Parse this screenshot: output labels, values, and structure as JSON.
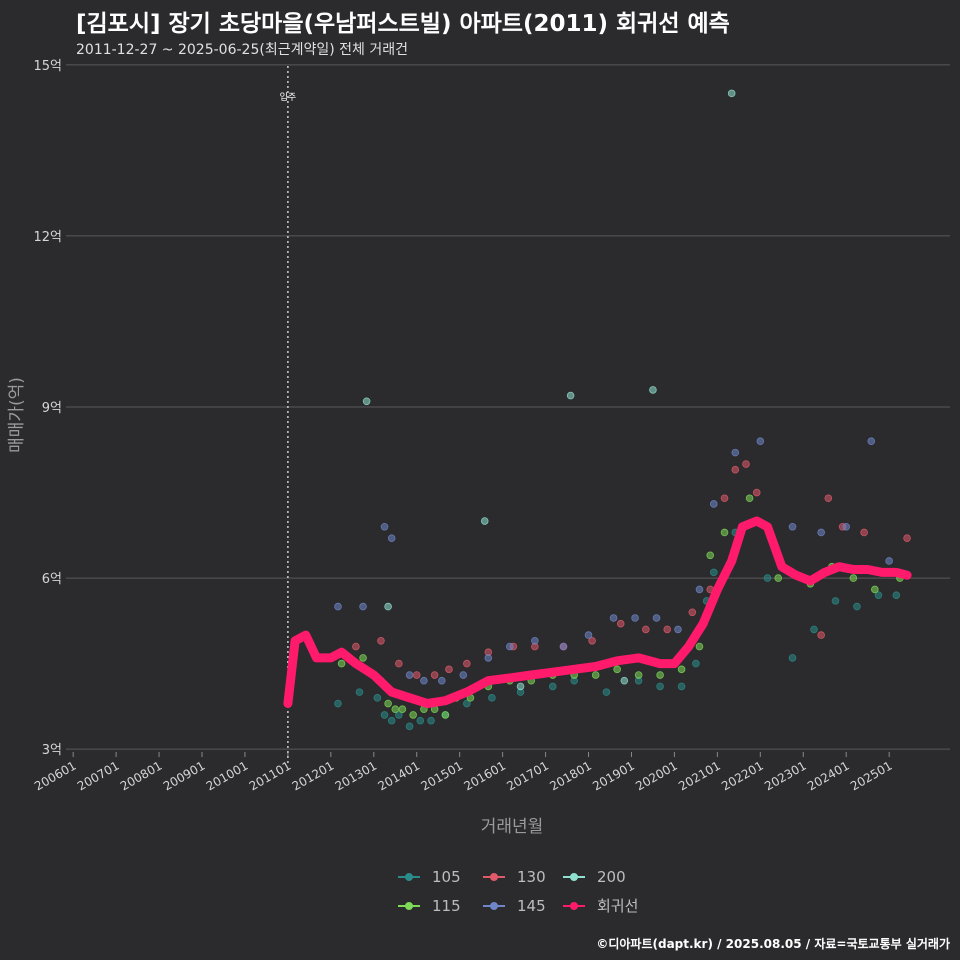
{
  "header": {
    "title": "[김포시] 장기 초당마을(우남퍼스트빌) 아파트(2011) 회귀선 예측",
    "subtitle": "2011-12-27 ~ 2025-06-25(최근계약일) 전체 거래건"
  },
  "footer": {
    "credit": "©디아파트(dapt.kr) / 2025.08.05 / 자료=국토교통부 실거래가"
  },
  "colors": {
    "background": "#2b2b2d",
    "grid": "#5a5a5c",
    "regression": "#ff1a6c",
    "s105": "#2a8c88",
    "s115": "#7ed957",
    "s130": "#e05a6a",
    "s145": "#6f86c8",
    "s200": "#8fe0cf"
  },
  "chart_data": {
    "type": "scatter",
    "title": "[김포시] 장기 초당마을(우남퍼스트빌) 아파트(2011) 회귀선 예측",
    "xlabel": "거래년월",
    "ylabel": "매매가(억)",
    "x_tick_labels": [
      "200601",
      "200701",
      "200801",
      "200901",
      "201001",
      "201101",
      "201201",
      "201301",
      "201401",
      "201501",
      "201601",
      "201701",
      "201801",
      "201901",
      "202001",
      "202101",
      "202201",
      "202301",
      "202401",
      "202501"
    ],
    "x_range": [
      "2005-11",
      "2026-06"
    ],
    "y_tick_values": [
      3,
      6,
      9,
      12,
      15
    ],
    "y_tick_labels": [
      "3억",
      "6억",
      "9억",
      "12억",
      "15억"
    ],
    "ylim": [
      2.95,
      15.05
    ],
    "grid": "horizontal",
    "legend_position": "bottom",
    "annotations": [
      {
        "x": "2011-01",
        "label": "입주",
        "style": "vertical dotted line"
      }
    ],
    "legend": [
      "105",
      "115",
      "130",
      "145",
      "200",
      "회귀선"
    ],
    "series": [
      {
        "name": "105",
        "points": [
          [
            "2012-03",
            3.8
          ],
          [
            "2012-09",
            4.0
          ],
          [
            "2013-02",
            3.9
          ],
          [
            "2013-04",
            3.6
          ],
          [
            "2013-06",
            3.5
          ],
          [
            "2013-08",
            3.6
          ],
          [
            "2013-11",
            3.4
          ],
          [
            "2014-02",
            3.5
          ],
          [
            "2014-05",
            3.5
          ],
          [
            "2014-09",
            3.6
          ],
          [
            "2015-03",
            3.8
          ],
          [
            "2015-10",
            3.9
          ],
          [
            "2016-06",
            4.0
          ],
          [
            "2017-03",
            4.1
          ],
          [
            "2017-09",
            4.2
          ],
          [
            "2018-06",
            4.0
          ],
          [
            "2019-03",
            4.2
          ],
          [
            "2019-09",
            4.1
          ],
          [
            "2020-03",
            4.1
          ],
          [
            "2020-07",
            4.5
          ],
          [
            "2020-10",
            5.6
          ],
          [
            "2020-12",
            6.1
          ],
          [
            "2021-06",
            6.8
          ],
          [
            "2022-03",
            6.0
          ],
          [
            "2022-10",
            4.6
          ],
          [
            "2023-04",
            5.1
          ],
          [
            "2023-10",
            5.6
          ],
          [
            "2024-04",
            5.5
          ],
          [
            "2024-10",
            5.7
          ],
          [
            "2025-03",
            5.7
          ]
        ]
      },
      {
        "name": "115",
        "points": [
          [
            "2012-04",
            4.5
          ],
          [
            "2012-10",
            4.6
          ],
          [
            "2013-01",
            4.3
          ],
          [
            "2013-03",
            4.2
          ],
          [
            "2013-05",
            3.8
          ],
          [
            "2013-07",
            3.7
          ],
          [
            "2013-09",
            3.7
          ],
          [
            "2013-12",
            3.6
          ],
          [
            "2014-03",
            3.7
          ],
          [
            "2014-06",
            3.7
          ],
          [
            "2014-09",
            3.6
          ],
          [
            "2014-12",
            3.9
          ],
          [
            "2015-04",
            3.9
          ],
          [
            "2015-09",
            4.1
          ],
          [
            "2016-03",
            4.2
          ],
          [
            "2016-09",
            4.2
          ],
          [
            "2017-03",
            4.3
          ],
          [
            "2017-09",
            4.3
          ],
          [
            "2018-03",
            4.3
          ],
          [
            "2018-09",
            4.4
          ],
          [
            "2019-03",
            4.3
          ],
          [
            "2019-09",
            4.3
          ],
          [
            "2020-03",
            4.4
          ],
          [
            "2020-08",
            4.8
          ],
          [
            "2020-11",
            6.4
          ],
          [
            "2021-03",
            6.8
          ],
          [
            "2021-10",
            7.4
          ],
          [
            "2022-06",
            6.0
          ],
          [
            "2023-03",
            5.9
          ],
          [
            "2023-09",
            6.2
          ],
          [
            "2024-03",
            6.0
          ],
          [
            "2024-09",
            5.8
          ],
          [
            "2025-04",
            6.0
          ]
        ]
      },
      {
        "name": "130",
        "points": [
          [
            "2012-08",
            4.8
          ],
          [
            "2013-03",
            4.9
          ],
          [
            "2013-08",
            4.5
          ],
          [
            "2014-01",
            4.3
          ],
          [
            "2014-06",
            4.3
          ],
          [
            "2014-10",
            4.4
          ],
          [
            "2015-03",
            4.5
          ],
          [
            "2015-09",
            4.7
          ],
          [
            "2016-04",
            4.8
          ],
          [
            "2016-10",
            4.8
          ],
          [
            "2017-06",
            4.8
          ],
          [
            "2018-02",
            4.9
          ],
          [
            "2018-10",
            5.2
          ],
          [
            "2019-05",
            5.1
          ],
          [
            "2019-11",
            5.1
          ],
          [
            "2020-06",
            5.4
          ],
          [
            "2020-11",
            5.8
          ],
          [
            "2021-03",
            7.4
          ],
          [
            "2021-06",
            7.9
          ],
          [
            "2021-09",
            8.0
          ],
          [
            "2021-12",
            7.5
          ],
          [
            "2023-06",
            5.0
          ],
          [
            "2023-08",
            7.4
          ],
          [
            "2023-12",
            6.9
          ],
          [
            "2024-06",
            6.8
          ],
          [
            "2025-06",
            6.7
          ]
        ]
      },
      {
        "name": "145",
        "points": [
          [
            "2012-03",
            5.5
          ],
          [
            "2012-10",
            5.5
          ],
          [
            "2013-04",
            6.9
          ],
          [
            "2013-06",
            6.7
          ],
          [
            "2013-11",
            4.3
          ],
          [
            "2014-03",
            4.2
          ],
          [
            "2014-08",
            4.2
          ],
          [
            "2015-02",
            4.3
          ],
          [
            "2015-09",
            4.6
          ],
          [
            "2016-03",
            4.8
          ],
          [
            "2016-10",
            4.9
          ],
          [
            "2017-06",
            4.8
          ],
          [
            "2018-01",
            5.0
          ],
          [
            "2018-08",
            5.3
          ],
          [
            "2019-02",
            5.3
          ],
          [
            "2019-08",
            5.3
          ],
          [
            "2020-02",
            5.1
          ],
          [
            "2020-08",
            5.8
          ],
          [
            "2020-12",
            7.3
          ],
          [
            "2021-06",
            8.2
          ],
          [
            "2022-01",
            8.4
          ],
          [
            "2022-10",
            6.9
          ],
          [
            "2023-06",
            6.8
          ],
          [
            "2024-01",
            6.9
          ],
          [
            "2024-08",
            8.4
          ],
          [
            "2025-01",
            6.3
          ]
        ]
      },
      {
        "name": "200",
        "points": [
          [
            "2012-11",
            9.1
          ],
          [
            "2015-08",
            7.0
          ],
          [
            "2017-08",
            9.2
          ],
          [
            "2019-07",
            9.3
          ],
          [
            "2021-05",
            14.5
          ],
          [
            "2013-05",
            5.5
          ],
          [
            "2016-06",
            4.1
          ],
          [
            "2018-11",
            4.2
          ]
        ]
      }
    ],
    "regression": {
      "name": "회귀선",
      "points": [
        [
          "2011-01",
          3.8
        ],
        [
          "2011-03",
          4.9
        ],
        [
          "2011-06",
          5.0
        ],
        [
          "2011-09",
          4.6
        ],
        [
          "2012-01",
          4.6
        ],
        [
          "2012-04",
          4.7
        ],
        [
          "2012-08",
          4.5
        ],
        [
          "2013-01",
          4.3
        ],
        [
          "2013-06",
          4.0
        ],
        [
          "2013-11",
          3.9
        ],
        [
          "2014-04",
          3.8
        ],
        [
          "2014-09",
          3.85
        ],
        [
          "2015-03",
          4.0
        ],
        [
          "2015-09",
          4.2
        ],
        [
          "2016-03",
          4.25
        ],
        [
          "2016-09",
          4.3
        ],
        [
          "2017-03",
          4.35
        ],
        [
          "2017-09",
          4.4
        ],
        [
          "2018-03",
          4.45
        ],
        [
          "2018-09",
          4.55
        ],
        [
          "2019-03",
          4.6
        ],
        [
          "2019-09",
          4.5
        ],
        [
          "2020-01",
          4.5
        ],
        [
          "2020-05",
          4.8
        ],
        [
          "2020-09",
          5.2
        ],
        [
          "2021-01",
          5.8
        ],
        [
          "2021-05",
          6.3
        ],
        [
          "2021-08",
          6.9
        ],
        [
          "2021-12",
          7.0
        ],
        [
          "2022-03",
          6.9
        ],
        [
          "2022-07",
          6.2
        ],
        [
          "2022-11",
          6.05
        ],
        [
          "2023-03",
          5.95
        ],
        [
          "2023-07",
          6.1
        ],
        [
          "2023-11",
          6.2
        ],
        [
          "2024-03",
          6.15
        ],
        [
          "2024-07",
          6.15
        ],
        [
          "2024-11",
          6.1
        ],
        [
          "2025-03",
          6.1
        ],
        [
          "2025-06",
          6.05
        ]
      ]
    }
  }
}
